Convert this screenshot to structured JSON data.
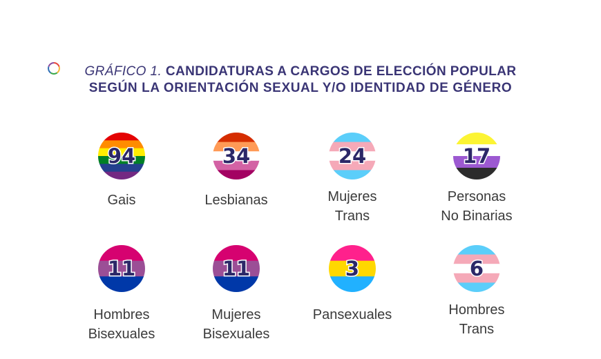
{
  "title": {
    "prefix": "GRÁFICO 1.",
    "line1": "CANDIDATURAS A CARGOS DE ELECCIÓN POPULAR",
    "line2": "SEGÚN LA ORIENTACIÓN SEXUAL Y/O IDENTIDAD DE GÉNERO"
  },
  "colors": {
    "title": "#3a3575",
    "value": "#2c2868",
    "label": "#3b3b3b",
    "logo_ring": [
      "#e8493f",
      "#f6b83b",
      "#3aa84a",
      "#2f6fb5",
      "#8b4fa0"
    ]
  },
  "chart_data": {
    "type": "table",
    "categories": [
      [
        "Gais"
      ],
      [
        "Lesbianas"
      ],
      [
        "Mujeres",
        "Trans"
      ],
      [
        "Personas",
        "No Binarias"
      ],
      [
        "Hombres",
        "Bisexuales"
      ],
      [
        "Mujeres",
        "Bisexuales"
      ],
      [
        "Pansexuales"
      ],
      [
        "Hombres",
        "Trans"
      ]
    ],
    "values": [
      94,
      34,
      24,
      17,
      11,
      11,
      3,
      6
    ],
    "flags": [
      [
        "#e40303",
        "#ff8c00",
        "#ffed00",
        "#008026",
        "#24408e",
        "#732982"
      ],
      [
        "#d52d00",
        "#ff9a56",
        "#ffffff",
        "#d362a4",
        "#a30262"
      ],
      [
        "#5bcefa",
        "#f5a9b8",
        "#ffffff",
        "#f5a9b8",
        "#5bcefa"
      ],
      [
        "#fcf434",
        "#ffffff",
        "#9c59d1",
        "#2c2c2c"
      ],
      [
        "#d60270",
        "#9b4f96",
        "#0038a8"
      ],
      [
        "#d60270",
        "#9b4f96",
        "#0038a8"
      ],
      [
        "#ff218c",
        "#ffd800",
        "#21b1ff"
      ],
      [
        "#5bcefa",
        "#f5a9b8",
        "#ffffff",
        "#f5a9b8",
        "#5bcefa"
      ]
    ]
  }
}
